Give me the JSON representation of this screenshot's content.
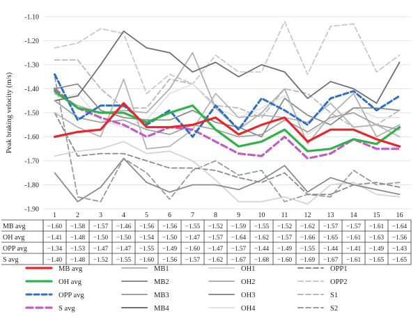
{
  "chart_data": {
    "type": "line",
    "title": "",
    "ylabel": "Peak braking velocity (m/s)",
    "xlabel": "",
    "ylim": [
      -1.9,
      -1.1
    ],
    "yticks": [
      "-1.10",
      "-1.20",
      "-1.30",
      "-1.40",
      "-1.50",
      "-1.60",
      "-1.70",
      "-1.80",
      "-1.90"
    ],
    "grid": "horizontal",
    "legend_placement": "bottom",
    "categories": [
      "1",
      "2",
      "3",
      "4",
      "5",
      "6",
      "7",
      "8",
      "9",
      "10",
      "11",
      "12",
      "13",
      "14",
      "15",
      "16"
    ],
    "series": [
      {
        "name": "MB avg",
        "color": "#e8262b",
        "width": 3.2,
        "dash": "none",
        "values": [
          -1.6,
          -1.58,
          -1.57,
          -1.46,
          -1.56,
          -1.56,
          -1.55,
          -1.52,
          -1.59,
          -1.55,
          -1.52,
          -1.62,
          -1.57,
          -1.57,
          -1.61,
          -1.64
        ]
      },
      {
        "name": "OH avg",
        "color": "#2db34a",
        "width": 3.2,
        "dash": "none",
        "values": [
          -1.41,
          -1.48,
          -1.5,
          -1.5,
          -1.54,
          -1.5,
          -1.47,
          -1.57,
          -1.64,
          -1.62,
          -1.57,
          -1.66,
          -1.65,
          -1.61,
          -1.63,
          -1.56
        ]
      },
      {
        "name": "OPP avg",
        "color": "#2f6fc2",
        "width": 3,
        "dash": "7,4",
        "values": [
          -1.34,
          -1.53,
          -1.47,
          -1.47,
          -1.55,
          -1.49,
          -1.6,
          -1.47,
          -1.57,
          -1.44,
          -1.49,
          -1.55,
          -1.44,
          -1.41,
          -1.49,
          -1.43
        ]
      },
      {
        "name": "S avg",
        "color": "#c25cc4",
        "width": 3.2,
        "dash": "9,5",
        "values": [
          -1.4,
          -1.48,
          -1.52,
          -1.55,
          -1.6,
          -1.56,
          -1.57,
          -1.62,
          -1.67,
          -1.68,
          -1.6,
          -1.69,
          -1.67,
          -1.61,
          -1.65,
          -1.65
        ]
      },
      {
        "name": "MB1",
        "color": "#b5b5b5",
        "width": 1.8,
        "dash": "none",
        "values": [
          -1.5,
          -1.56,
          -1.6,
          -1.36,
          -1.65,
          -1.64,
          -1.57,
          -1.42,
          -1.52,
          -1.51,
          -1.52,
          -1.54,
          -1.46,
          -1.56,
          -1.55,
          -1.6
        ]
      },
      {
        "name": "MB2",
        "color": "#8a8a8a",
        "width": 1.8,
        "dash": "none",
        "values": [
          -1.75,
          -1.87,
          -1.81,
          -1.69,
          -1.79,
          -1.83,
          -1.8,
          -1.8,
          -1.82,
          -1.78,
          -1.72,
          -1.83,
          -1.77,
          -1.8,
          -1.82,
          -1.84
        ]
      },
      {
        "name": "MB3",
        "color": "#a2a2a2",
        "width": 1.8,
        "dash": "none",
        "values": [
          -1.45,
          -1.52,
          -1.54,
          -1.53,
          -1.57,
          -1.59,
          -1.55,
          -1.57,
          -1.6,
          -1.59,
          -1.53,
          -1.58,
          -1.52,
          -1.5,
          -1.55,
          -1.57
        ]
      },
      {
        "name": "MB4",
        "color": "#6e6e6e",
        "width": 1.8,
        "dash": "none",
        "values": [
          -1.45,
          -1.43,
          -1.3,
          -1.16,
          -1.23,
          -1.25,
          -1.33,
          -1.29,
          -1.35,
          -1.3,
          -1.33,
          -1.44,
          -1.37,
          -1.4,
          -1.46,
          -1.29
        ]
      },
      {
        "name": "OH1",
        "color": "#d4d4d4",
        "width": 1.8,
        "dash": "none",
        "values": [
          -1.68,
          -1.66,
          -1.65,
          -1.62,
          -1.67,
          -1.66,
          -1.7,
          -1.78,
          -1.87,
          -1.87,
          -1.85,
          -1.88,
          -1.8,
          -1.79,
          -1.84,
          -1.85
        ]
      },
      {
        "name": "OH2",
        "color": "#b0b0b0",
        "width": 1.8,
        "dash": "none",
        "values": [
          -1.42,
          -1.47,
          -1.5,
          -1.49,
          -1.5,
          -1.4,
          -1.25,
          -1.48,
          -1.57,
          -1.5,
          -1.4,
          -1.63,
          -1.51,
          -1.42,
          -1.6,
          -1.55
        ]
      },
      {
        "name": "OH3",
        "color": "#8c8c8c",
        "width": 1.8,
        "dash": "none",
        "values": [
          -1.4,
          -1.38,
          -1.49,
          -1.52,
          -1.53,
          -1.53,
          -1.49,
          -1.54,
          -1.56,
          -1.6,
          -1.44,
          -1.51,
          -1.55,
          -1.48,
          -1.48,
          -1.49
        ]
      },
      {
        "name": "OH4",
        "color": "#e2e2e2",
        "width": 1.8,
        "dash": "none",
        "values": [
          -1.45,
          -1.42,
          -1.53,
          -1.56,
          -1.53,
          -1.42,
          -1.38,
          -1.48,
          -1.52,
          -1.48,
          -1.43,
          -1.59,
          -1.53,
          -1.48,
          -1.52,
          -1.52
        ]
      },
      {
        "name": "OPP1",
        "color": "#8a8a8a",
        "width": 1.8,
        "dash": "7,4",
        "values": [
          -1.5,
          -1.68,
          -1.67,
          -1.67,
          -1.7,
          -1.73,
          -1.73,
          -1.74,
          -1.77,
          -1.79,
          -1.75,
          -1.84,
          -1.84,
          -1.8,
          -1.79,
          -1.81
        ]
      },
      {
        "name": "OPP2",
        "color": "#c8c8c8",
        "width": 1.8,
        "dash": "7,4",
        "values": [
          -1.23,
          -1.21,
          -1.15,
          -1.17,
          -1.42,
          -1.34,
          -1.38,
          -1.26,
          -1.33,
          -1.33,
          -1.12,
          -1.34,
          -1.14,
          -1.13,
          -1.33,
          -1.26
        ]
      },
      {
        "name": "S1",
        "color": "#b8b8b8",
        "width": 1.8,
        "dash": "7,4",
        "values": [
          -1.28,
          -1.28,
          -1.4,
          -1.48,
          -1.48,
          -1.36,
          -1.38,
          -1.47,
          -1.48,
          -1.52,
          -1.4,
          -1.42,
          -1.5,
          -1.56,
          -1.55,
          -1.49
        ]
      },
      {
        "name": "S2",
        "color": "#9a9a9a",
        "width": 1.8,
        "dash": "7,4",
        "values": [
          -1.35,
          -1.85,
          -1.87,
          -1.69,
          -1.75,
          -1.86,
          -1.74,
          -1.7,
          -1.76,
          -1.74,
          -1.87,
          -1.84,
          -1.85,
          -1.74,
          -1.8,
          -1.79
        ]
      }
    ],
    "table": {
      "rows": [
        {
          "label": "MB avg",
          "values": [
            "−1.60",
            "−1.58",
            "−1.57",
            "−1.46",
            "−1.56",
            "−1.56",
            "−1.55",
            "−1.52",
            "−1.59",
            "−1.55",
            "−1.52",
            "−1.62",
            "−1.57",
            "−1.57",
            "−1.61",
            "−1.64"
          ]
        },
        {
          "label": "OH avg",
          "values": [
            "−1.41",
            "−1.48",
            "−1.50",
            "−1.50",
            "−1.54",
            "−1.50",
            "−1.47",
            "−1.57",
            "−1.64",
            "−1.62",
            "−1.57",
            "−1.66",
            "−1.65",
            "−1.61",
            "−1.63",
            "−1.56"
          ]
        },
        {
          "label": "OPP avg",
          "values": [
            "−1.34",
            "−1.53",
            "−1.47",
            "−1.47",
            "−1.55",
            "−1.49",
            "−1.60",
            "−1.47",
            "−1.57",
            "−1.44",
            "−1.49",
            "−1.55",
            "−1.44",
            "−1.41",
            "−1.49",
            "−1.43"
          ]
        },
        {
          "label": "S avg",
          "values": [
            "−1.40",
            "−1.48",
            "−1.52",
            "−1.55",
            "−1.60",
            "−1.56",
            "−1.57",
            "−1.62",
            "−1.67",
            "−1.68",
            "−1.60",
            "−1.69",
            "−1.67",
            "−1.61",
            "−1.65",
            "−1.65"
          ]
        }
      ]
    },
    "legend_order": [
      "MB avg",
      "MB1",
      "OH1",
      "OPP1",
      "OH avg",
      "MB2",
      "OH2",
      "OPP2",
      "OPP avg",
      "MB3",
      "OH3",
      "S1",
      "S avg",
      "MB4",
      "OH4",
      "S2"
    ]
  }
}
